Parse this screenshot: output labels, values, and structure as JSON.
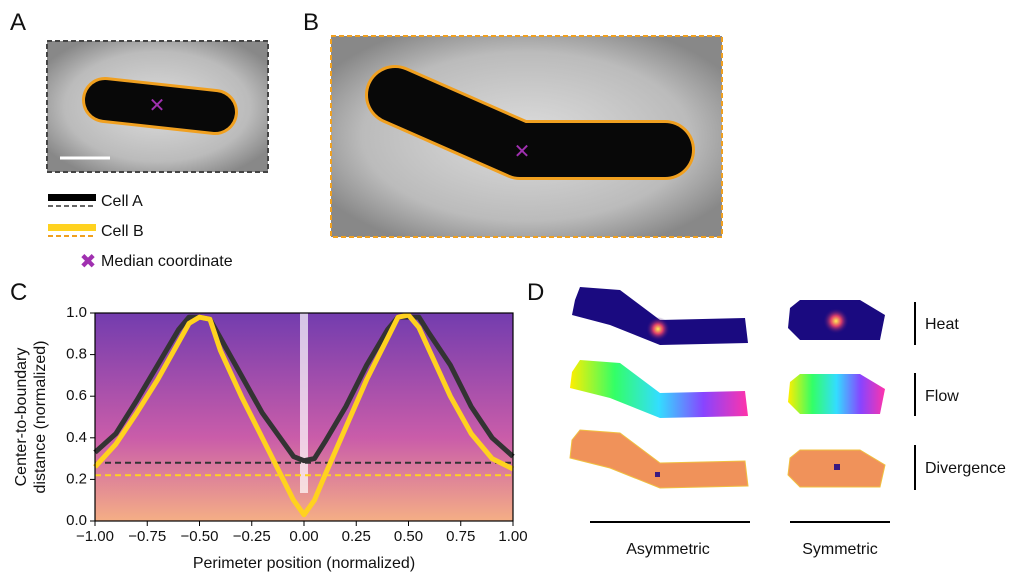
{
  "chart_data": {
    "type": "line",
    "xlabel": "Perimeter position (normalized)",
    "ylabel": [
      "Center-to-boundary",
      "distance (normalized)"
    ],
    "xlim": [
      -1,
      1
    ],
    "ylim": [
      0,
      1
    ],
    "xticks": [
      {
        "value": -1,
        "label": "−1.00"
      },
      {
        "value": -0.75,
        "label": "−0.75"
      },
      {
        "value": -0.5,
        "label": "−0.50"
      },
      {
        "value": -0.25,
        "label": "−0.25"
      },
      {
        "value": 0,
        "label": "0.00"
      },
      {
        "value": 0.25,
        "label": "0.25"
      },
      {
        "value": 0.5,
        "label": "0.50"
      },
      {
        "value": 0.75,
        "label": "0.75"
      },
      {
        "value": 1,
        "label": "1.00"
      }
    ],
    "yticks": [
      {
        "value": 0,
        "label": "0.0"
      },
      {
        "value": 0.2,
        "label": "0.2"
      },
      {
        "value": 0.4,
        "label": "0.4"
      },
      {
        "value": 0.6,
        "label": "0.6"
      },
      {
        "value": 0.8,
        "label": "0.8"
      },
      {
        "value": 1,
        "label": "1.0"
      }
    ],
    "x": [
      -1,
      -0.9,
      -0.8,
      -0.7,
      -0.6,
      -0.55,
      -0.5,
      -0.45,
      -0.4,
      -0.3,
      -0.2,
      -0.1,
      -0.05,
      0,
      0.05,
      0.1,
      0.2,
      0.3,
      0.4,
      0.45,
      0.5,
      0.55,
      0.6,
      0.7,
      0.8,
      0.9,
      1
    ],
    "series": [
      {
        "name": "Cell A",
        "color": "#333333",
        "median": 0.28,
        "values": [
          0.33,
          0.42,
          0.58,
          0.75,
          0.92,
          0.98,
          0.98,
          0.97,
          0.88,
          0.7,
          0.52,
          0.38,
          0.31,
          0.29,
          0.3,
          0.38,
          0.55,
          0.75,
          0.92,
          0.98,
          0.98,
          0.98,
          0.9,
          0.75,
          0.55,
          0.4,
          0.31
        ]
      },
      {
        "name": "Cell B",
        "color": "#ffd21f",
        "median": 0.22,
        "values": [
          0.26,
          0.37,
          0.52,
          0.68,
          0.86,
          0.95,
          0.98,
          0.97,
          0.82,
          0.6,
          0.4,
          0.2,
          0.1,
          0.03,
          0.1,
          0.22,
          0.45,
          0.68,
          0.88,
          0.98,
          0.99,
          0.93,
          0.82,
          0.6,
          0.42,
          0.3,
          0.25
        ]
      }
    ]
  },
  "figure": {
    "panel_labels": [
      "A",
      "B",
      "C",
      "D"
    ],
    "legend_median": "Median coordinate",
    "d_rows": [
      "Heat",
      "Flow",
      "Divergence"
    ],
    "d_columns": [
      "Asymmetric",
      "Symmetric"
    ]
  }
}
